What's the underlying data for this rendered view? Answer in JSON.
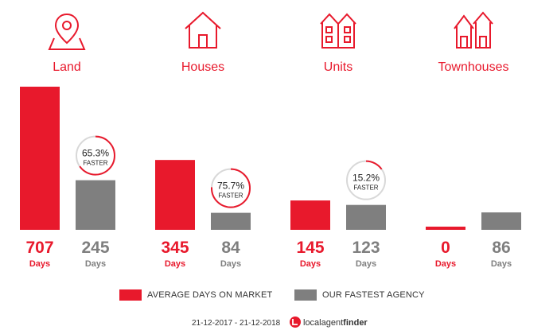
{
  "categories": [
    {
      "label": "Land",
      "icon": "map-pin-icon"
    },
    {
      "label": "Houses",
      "icon": "house-icon"
    },
    {
      "label": "Units",
      "icon": "units-building-icon"
    },
    {
      "label": "Townhouses",
      "icon": "townhouses-icon"
    }
  ],
  "colors": {
    "market": "#e8192c",
    "agency": "#7f7f7f",
    "ring_track": "#d8d8d8"
  },
  "chart_data": {
    "type": "bar",
    "categories": [
      "Land",
      "Houses",
      "Units",
      "Townhouses"
    ],
    "series": [
      {
        "name": "AVERAGE DAYS ON MARKET",
        "values": [
          707,
          345,
          145,
          0
        ]
      },
      {
        "name": "OUR FASTEST AGENCY",
        "values": [
          245,
          84,
          123,
          86
        ]
      }
    ],
    "unit_label": "Days",
    "faster": [
      {
        "category": "Land",
        "percent": 65.3,
        "label": "65.3%",
        "caption": "FASTER"
      },
      {
        "category": "Houses",
        "percent": 75.7,
        "label": "75.7%",
        "caption": "FASTER"
      },
      {
        "category": "Units",
        "percent": 15.2,
        "label": "15.2%",
        "caption": "FASTER"
      }
    ],
    "ylim": [
      0,
      707
    ],
    "grid": false,
    "legend_position": "bottom"
  },
  "legend": {
    "market": "AVERAGE DAYS ON MARKET",
    "agency": "OUR FASTEST AGENCY"
  },
  "footer": {
    "date_range": "21-12-2017 - 21-12-2018",
    "brand_light": "localagent",
    "brand_bold": "finder"
  }
}
